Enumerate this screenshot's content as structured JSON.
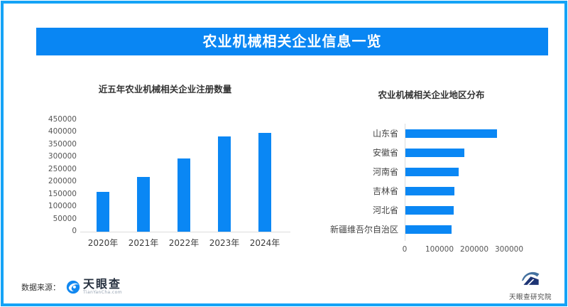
{
  "page": {
    "background": "#ffffff",
    "border_color": "#15a3f6",
    "accent_color": "#0a87f4"
  },
  "header": {
    "title": "农业机械相关企业信息一览",
    "background_color": "#0986f3",
    "text_color": "#ffffff"
  },
  "chart_data": [
    {
      "type": "bar",
      "orientation": "vertical",
      "title": "近五年农业机械相关企业注册数量",
      "categories": [
        "2020年",
        "2021年",
        "2022年",
        "2023年",
        "2024年"
      ],
      "values": [
        160000,
        220000,
        295000,
        382000,
        396000
      ],
      "xlabel": "",
      "ylabel": "",
      "ylim": [
        0,
        450000
      ],
      "ytick_step": 50000,
      "bar_color": "#0a87f4",
      "grid": false,
      "legend": null
    },
    {
      "type": "bar",
      "orientation": "horizontal",
      "title": "农业机械相关企业地区分布",
      "categories": [
        "山东省",
        "安徽省",
        "河南省",
        "吉林省",
        "河北省",
        "新疆维吾尔自治区"
      ],
      "values": [
        263000,
        170000,
        154000,
        140000,
        138000,
        133000
      ],
      "xlabel": "",
      "ylabel": "",
      "xlim": [
        0,
        300000
      ],
      "xticks": [
        0,
        100000,
        200000,
        300000
      ],
      "bar_color": "#0a87f4",
      "grid": false,
      "legend": null
    }
  ],
  "footer": {
    "source_label": "数据来源：",
    "tianyancha": {
      "icon": "tianyancha-eye-icon",
      "name": "天眼查",
      "domain": "TianYanCha.com"
    },
    "institute": {
      "icon": "mountain-swoosh-icon",
      "name": "天眼查研究院"
    }
  }
}
